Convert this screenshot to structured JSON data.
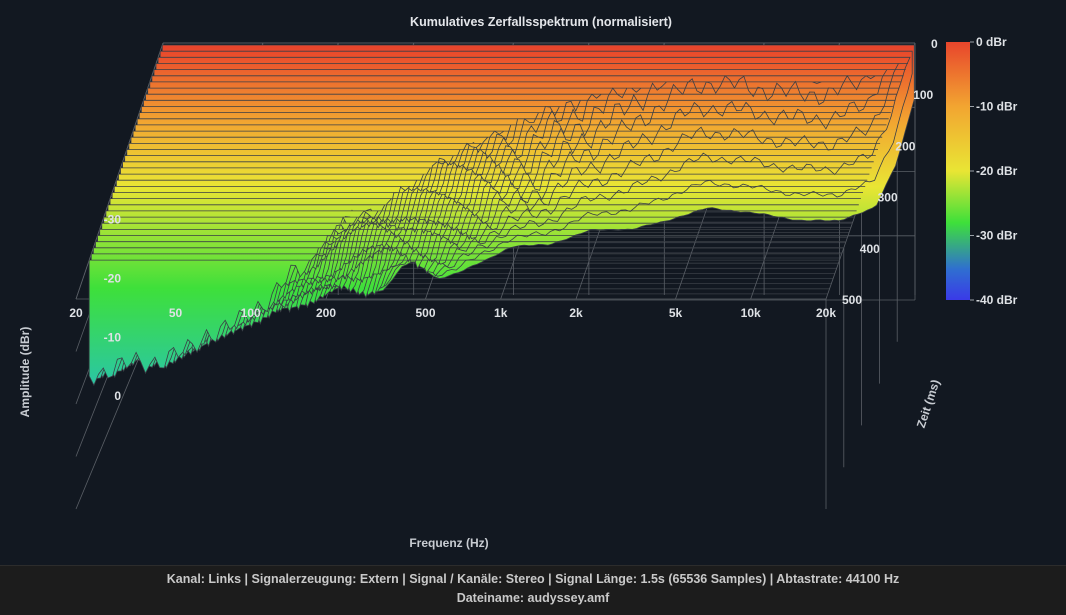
{
  "chart_data": {
    "type": "area",
    "title": "Kumulatives Zerfallsspektrum (normalisiert)",
    "xlabel": "Frequenz (Hz)",
    "ylabel": "Amplitude (dBr)",
    "zlabel": "Zeit (ms)",
    "x_scale": "log",
    "xlim": [
      20,
      20000
    ],
    "ylim": [
      -40,
      0
    ],
    "zlim": [
      0,
      500
    ],
    "x_ticks": [
      "20",
      "50",
      "100",
      "200",
      "500",
      "1k",
      "2k",
      "5k",
      "10k",
      "20k"
    ],
    "x_tick_values": [
      20,
      50,
      100,
      200,
      500,
      1000,
      2000,
      5000,
      10000,
      20000
    ],
    "y_ticks": [
      "0",
      "-10",
      "-20",
      "-30"
    ],
    "y_tick_values": [
      0,
      -10,
      -20,
      -30
    ],
    "z_ticks": [
      "0",
      "100",
      "200",
      "300",
      "400",
      "500"
    ],
    "z_tick_values": [
      0,
      100,
      200,
      300,
      400,
      500
    ],
    "colorbar": {
      "labels": [
        "0 dBr",
        "-10 dBr",
        "-20 dBr",
        "-30 dBr",
        "-40 dBr"
      ],
      "colors": [
        "#e8452c",
        "#f2a531",
        "#e9e534",
        "#3ee03a",
        "#2f6fd0",
        "#3a3ae8"
      ]
    },
    "grid": true,
    "series": [
      {
        "time_ms": 0,
        "freq_hz": [
          20,
          30,
          40,
          50,
          60,
          70,
          80,
          100,
          120,
          150,
          180,
          200,
          250,
          300,
          400,
          500,
          700,
          1000,
          1500,
          2000,
          3000,
          5000,
          7000,
          10000,
          14000,
          17000,
          20000
        ],
        "values_dbr": [
          -4,
          -3,
          -2,
          -1,
          -3,
          -2,
          -1,
          -2,
          -3,
          -1,
          -5,
          -6,
          -3,
          -4,
          -6,
          -8,
          -8,
          -10,
          -10,
          -11,
          -13,
          -12,
          -11,
          -11,
          -13,
          -20,
          -30
        ]
      }
    ]
  },
  "footer": {
    "line1": "Kanal: Links  |  Signalerzeugung: Extern   |  Signal / Kanäle: Stereo  |  Signal Länge: 1.5s (65536 Samples)  |  Abtastrate: 44100 Hz",
    "line2": "Dateiname: audyssey.amf"
  }
}
